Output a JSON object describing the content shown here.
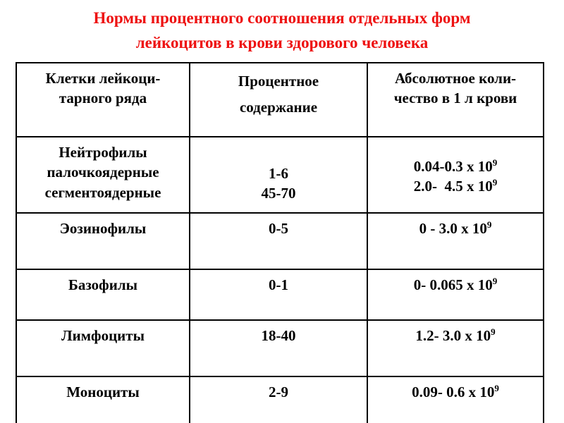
{
  "title": {
    "text": "Нормы процентного соотношения отдельных форм\nлейкоцитов в крови здорового человека",
    "color": "#ee1111"
  },
  "table": {
    "border_color": "#000000",
    "headers": [
      {
        "label": "Клетки лейкоци-\nтарного ряда"
      },
      {
        "label": "Процентное\nсодержание"
      },
      {
        "label": "Абсолютное коли-\nчество в 1 л крови"
      }
    ],
    "rows": [
      {
        "name": "Нейтрофилы\nпалочкоядерные\nсегментоядерные",
        "percent": "1-6\n45-70",
        "abs": [
          {
            "base": "0.04-0.3 x 10",
            "exp": "9"
          },
          {
            "base": "2.0-  4.5 x 10",
            "exp": "9"
          }
        ]
      },
      {
        "name": "Эозинофилы",
        "percent": "0-5",
        "abs": [
          {
            "base": "0 - 3.0 x 10",
            "exp": "9"
          }
        ]
      },
      {
        "name": "Базофилы",
        "percent": "0-1",
        "abs": [
          {
            "base": "0- 0.065 x 10",
            "exp": "9"
          }
        ]
      },
      {
        "name": "Лимфоциты",
        "percent": "18-40",
        "abs": [
          {
            "base": "1.2- 3.0 x 10",
            "exp": "9"
          }
        ]
      },
      {
        "name": "Моноциты",
        "percent": "2-9",
        "abs": [
          {
            "base": "0.09- 0.6 x 10",
            "exp": "9"
          }
        ]
      }
    ]
  },
  "chart_data": {
    "type": "table",
    "title": "Нормы процентного соотношения отдельных форм лейкоцитов в крови здорового человека",
    "columns": [
      "Клетки лейкоцитарного ряда",
      "Процентное содержание",
      "Абсолютное количество в 1 л крови"
    ],
    "rows": [
      [
        "Нейтрофилы палочкоядерные сегментоядерные",
        "1-6; 45-70",
        "0.04-0.3 x 10^9; 2.0-4.5 x 10^9"
      ],
      [
        "Эозинофилы",
        "0-5",
        "0 - 3.0 x 10^9"
      ],
      [
        "Базофилы",
        "0-1",
        "0- 0.065 x 10^9"
      ],
      [
        "Лимфоциты",
        "18-40",
        "1.2- 3.0 x 10^9"
      ],
      [
        "Моноциты",
        "2-9",
        "0.09- 0.6 x 10^9"
      ]
    ]
  }
}
